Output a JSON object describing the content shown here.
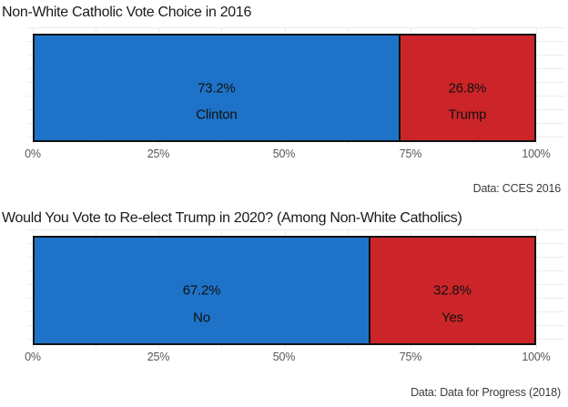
{
  "colors": {
    "dem_blue": "#1E73C8",
    "gop_red": "#CC2529",
    "bar_border": "#111111",
    "gridline": "#ececec",
    "title_text": "#1a1a1a",
    "axis_text": "#565656",
    "caption_text": "#3b3b3b",
    "background": "#ffffff"
  },
  "chart_data": [
    {
      "type": "bar",
      "variant": "horizontal-stacked-100pct",
      "title": "Non-White Catholic Vote Choice in 2016",
      "categories": [
        "Clinton",
        "Trump"
      ],
      "values": [
        73.2,
        26.8
      ],
      "value_labels": [
        "73.2%",
        "26.8%"
      ],
      "segment_colors": [
        "#1E73C8",
        "#CC2529"
      ],
      "x_ticks": [
        "0%",
        "25%",
        "50%",
        "75%",
        "100%"
      ],
      "xlim": [
        0,
        100
      ],
      "grid": true,
      "legend": "none",
      "caption": "Data: CCES 2016"
    },
    {
      "type": "bar",
      "variant": "horizontal-stacked-100pct",
      "title": "Would You Vote to Re-elect Trump in 2020? (Among Non-White Catholics)",
      "categories": [
        "No",
        "Yes"
      ],
      "values": [
        67.2,
        32.8
      ],
      "value_labels": [
        "67.2%",
        "32.8%"
      ],
      "segment_colors": [
        "#1E73C8",
        "#CC2529"
      ],
      "x_ticks": [
        "0%",
        "25%",
        "50%",
        "75%",
        "100%"
      ],
      "xlim": [
        0,
        100
      ],
      "grid": true,
      "legend": "none",
      "caption": "Data: Data for Progress (2018)"
    }
  ]
}
